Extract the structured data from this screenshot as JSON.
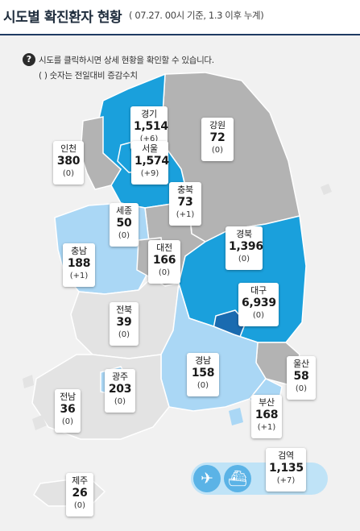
{
  "header": {
    "title": "시도별 확진환자 현황",
    "subtitle": "( 07.27. 00시 기준, 1.3 이후 누계)"
  },
  "notice": {
    "icon": "question-icon",
    "line1": "시도를 클릭하시면 상세 현황을 확인할 수 있습니다.",
    "line2": "( ) 숫자는 전일대비 증감수치"
  },
  "colors": {
    "high": "#1aa0dc",
    "medium": "#aad7f5",
    "low": "#e3e3e3",
    "neutral": "#b3b3b3",
    "daegu": "#1a6bb0",
    "sea": "#f1f1f1"
  },
  "regions": {
    "gyeonggi": {
      "name": "경기",
      "count": "1,514",
      "diff": "(+6)"
    },
    "gangwon": {
      "name": "강원",
      "count": "72",
      "diff": "(0)"
    },
    "incheon": {
      "name": "인천",
      "count": "380",
      "diff": "(0)"
    },
    "seoul": {
      "name": "서울",
      "count": "1,574",
      "diff": "(+9)"
    },
    "chungbuk": {
      "name": "충북",
      "count": "73",
      "diff": "(+1)"
    },
    "sejong": {
      "name": "세종",
      "count": "50",
      "diff": "(0)"
    },
    "gyeongbuk": {
      "name": "경북",
      "count": "1,396",
      "diff": "(0)"
    },
    "chungnam": {
      "name": "충남",
      "count": "188",
      "diff": "(+1)"
    },
    "daejeon": {
      "name": "대전",
      "count": "166",
      "diff": "(0)"
    },
    "daegu": {
      "name": "대구",
      "count": "6,939",
      "diff": "(0)"
    },
    "jeonbuk": {
      "name": "전북",
      "count": "39",
      "diff": "(0)"
    },
    "ulsan": {
      "name": "울산",
      "count": "58",
      "diff": "(0)"
    },
    "gyeongnam": {
      "name": "경남",
      "count": "158",
      "diff": "(0)"
    },
    "gwangju": {
      "name": "광주",
      "count": "203",
      "diff": "(0)"
    },
    "jeonnam": {
      "name": "전남",
      "count": "36",
      "diff": "(0)"
    },
    "busan": {
      "name": "부산",
      "count": "168",
      "diff": "(+1)"
    },
    "jeju": {
      "name": "제주",
      "count": "26",
      "diff": "(0)"
    }
  },
  "quarantine": {
    "name": "검역",
    "count": "1,135",
    "diff": "(+7)",
    "icons": [
      "airplane-icon",
      "ship-icon"
    ]
  }
}
